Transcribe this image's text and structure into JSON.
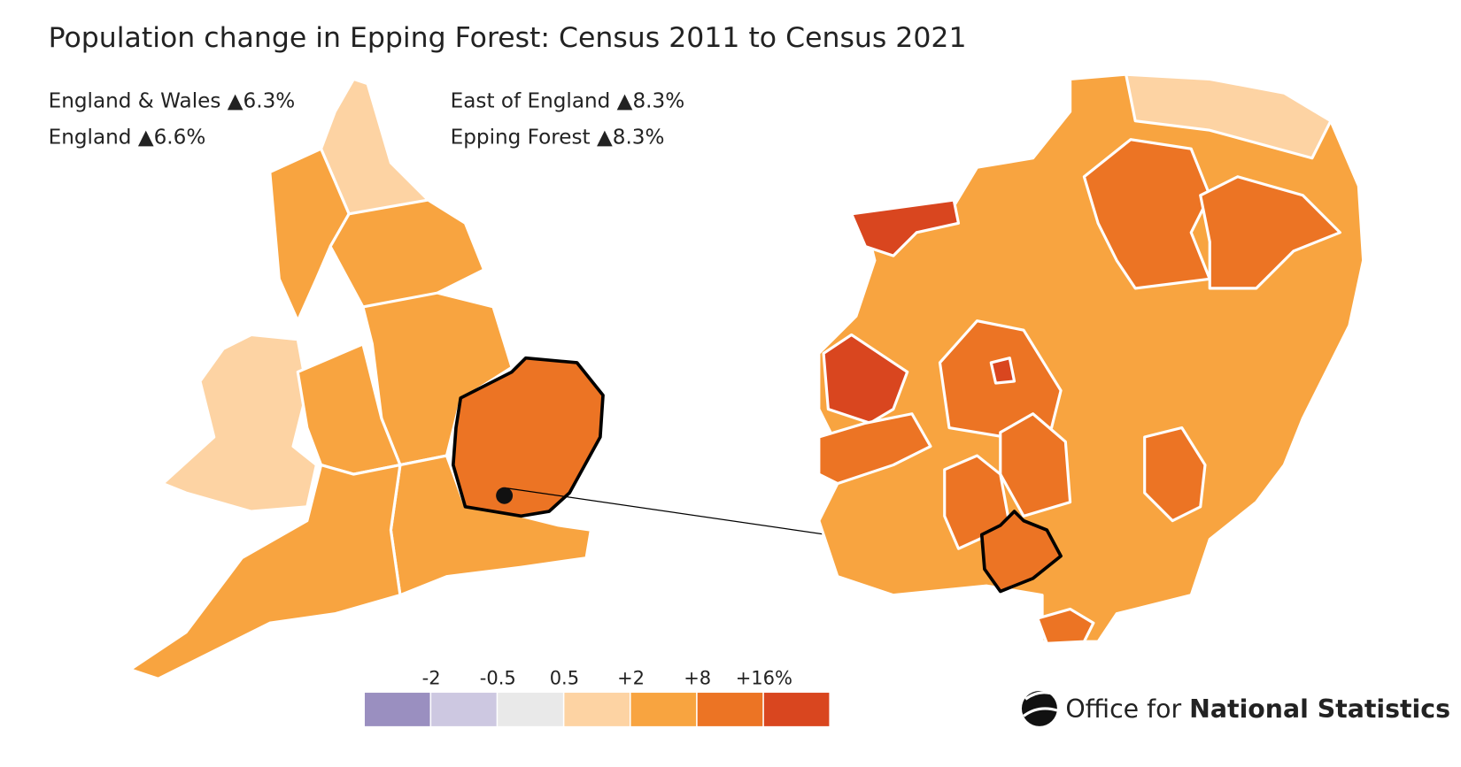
{
  "title": "Population change in Epping Forest: Census 2011 to Census 2021",
  "stats": [
    {
      "area": "England & Wales",
      "change": "▲6.3%"
    },
    {
      "area": "England",
      "change": "▲6.6%"
    },
    {
      "area": "East of England",
      "change": "▲8.3%"
    },
    {
      "area": "Epping Forest",
      "change": "▲8.3%"
    }
  ],
  "legend": {
    "ticks": [
      "-2",
      "-0.5",
      "0.5",
      "+2",
      "+8",
      "+16%"
    ],
    "colors": [
      "#9a8fc0",
      "#cdc8e1",
      "#e9e9e9",
      "#fdd3a3",
      "#f8a440",
      "#ec7424",
      "#d9461f"
    ]
  },
  "logo": {
    "prefix": "Office for",
    "name": "National Statistics"
  }
}
